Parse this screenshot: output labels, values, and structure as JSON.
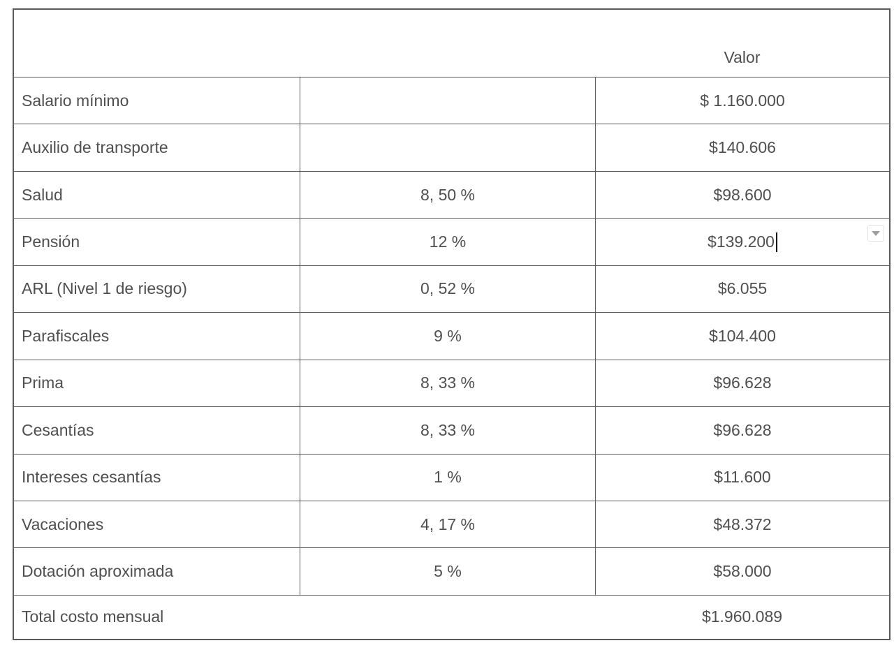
{
  "table": {
    "header": {
      "valor_label": "Valor"
    },
    "rows": [
      {
        "label": "Salario mínimo",
        "percent": "",
        "value": "$ 1.160.000",
        "has_caret": false,
        "has_dropdown": false
      },
      {
        "label": "Auxilio de transporte",
        "percent": "",
        "value": "$140.606",
        "has_caret": false,
        "has_dropdown": false
      },
      {
        "label": "Salud",
        "percent": "8, 50 %",
        "value": "$98.600",
        "has_caret": false,
        "has_dropdown": false
      },
      {
        "label": "Pensión",
        "percent": "12 %",
        "value": "$139.200",
        "has_caret": true,
        "has_dropdown": true
      },
      {
        "label": "ARL (Nivel 1 de riesgo)",
        "percent": "0, 52 %",
        "value": "$6.055",
        "has_caret": false,
        "has_dropdown": false
      },
      {
        "label": "Parafiscales",
        "percent": "9 %",
        "value": "$104.400",
        "has_caret": false,
        "has_dropdown": false
      },
      {
        "label": "Prima",
        "percent": "8, 33 %",
        "value": "$96.628",
        "has_caret": false,
        "has_dropdown": false
      },
      {
        "label": "Cesantías",
        "percent": "8, 33 %",
        "value": "$96.628",
        "has_caret": false,
        "has_dropdown": false
      },
      {
        "label": "Intereses cesantías",
        "percent": "1 %",
        "value": "$11.600",
        "has_caret": false,
        "has_dropdown": false
      },
      {
        "label": "Vacaciones",
        "percent": "4, 17 %",
        "value": "$48.372",
        "has_caret": false,
        "has_dropdown": false
      },
      {
        "label": "Dotación aproximada",
        "percent": "5 %",
        "value": "$58.000",
        "has_caret": false,
        "has_dropdown": false
      }
    ],
    "total": {
      "label": "Total costo mensual",
      "value": "$1.960.089"
    }
  },
  "colors": {
    "border": "#5a5a5a",
    "text": "#4f4f4f",
    "caret": "#111111",
    "dropdown_border": "#e2e2e2",
    "dropdown_arrow": "#9e9e9e"
  }
}
